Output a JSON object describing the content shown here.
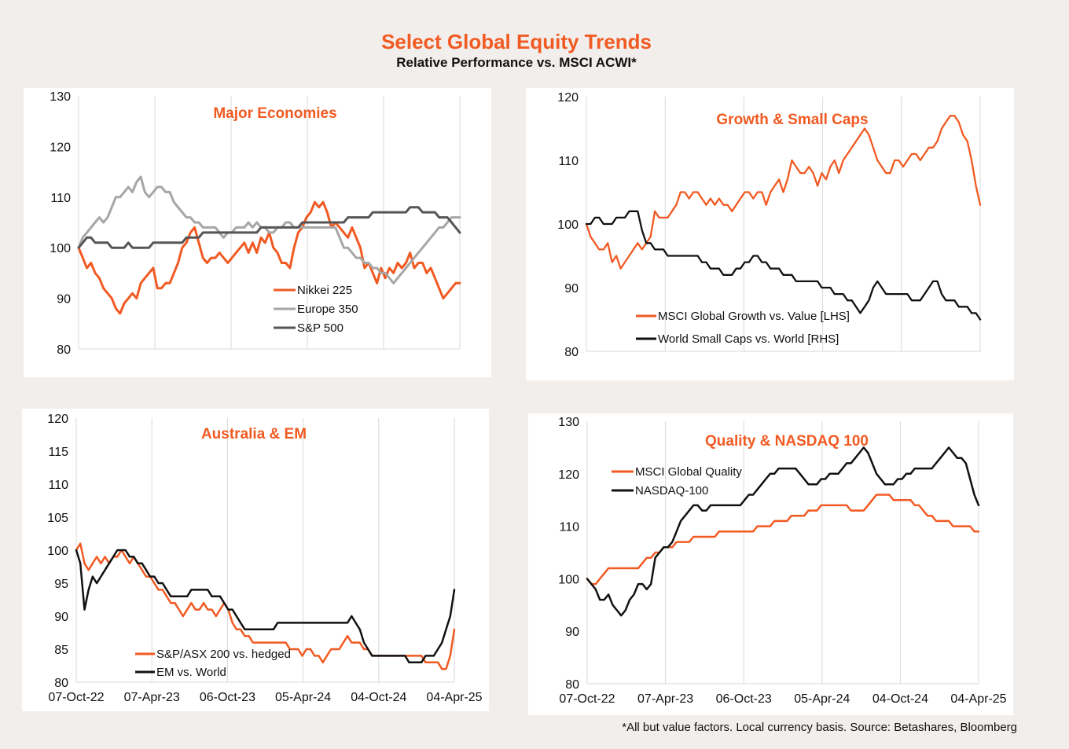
{
  "header": {
    "title": "Select Global Equity Trends",
    "subtitle": "Relative Performance vs. MSCI ACWI*"
  },
  "footnote": "*All but value factors. Local currency basis.  Source: Betashares, Bloomberg",
  "colors": {
    "orange": "#f15a22",
    "grey": "#a6a6a6",
    "darkgrey": "#555555",
    "black": "#111111"
  },
  "x_ticks": [
    "07-Oct-22",
    "07-Apr-23",
    "06-Oct-23",
    "05-Apr-24",
    "04-Oct-24",
    "04-Apr-25"
  ],
  "chart_data": [
    {
      "id": "major",
      "type": "line",
      "title": "Major  Economies",
      "ylim": [
        80,
        130
      ],
      "yticks": [
        80,
        90,
        100,
        110,
        120,
        130
      ],
      "x_range": [
        "07-Oct-22",
        "04-Apr-25"
      ],
      "show_x_ticks": false,
      "series": [
        {
          "name": "Nikkei 225",
          "color": "#f15a22",
          "values": [
            100,
            98,
            96,
            97,
            95,
            94,
            92,
            91,
            90,
            88,
            87,
            89,
            90,
            91,
            90,
            93,
            94,
            95,
            96,
            92,
            92,
            93,
            93,
            95,
            97,
            100,
            101,
            103,
            104,
            101,
            98,
            97,
            98,
            98,
            99,
            98,
            97,
            98,
            99,
            100,
            101,
            99,
            101,
            99,
            102,
            101,
            103,
            100,
            99,
            97,
            97,
            96,
            100,
            103,
            104,
            106,
            107,
            109,
            108,
            109,
            107,
            104,
            105,
            104,
            103,
            102,
            104,
            102,
            100,
            96,
            97,
            95,
            93,
            96,
            94,
            96,
            95,
            97,
            96,
            97,
            99,
            96,
            97,
            97,
            95,
            96,
            94,
            92,
            90,
            91,
            92,
            93,
            93
          ]
        },
        {
          "name": "Europe 350",
          "color": "#a6a6a6",
          "values": [
            100,
            102,
            103,
            104,
            105,
            106,
            105,
            106,
            108,
            110,
            110,
            111,
            112,
            111,
            113,
            114,
            111,
            110,
            111,
            112,
            112,
            111,
            111,
            109,
            108,
            107,
            106,
            106,
            105,
            105,
            104,
            104,
            104,
            104,
            103,
            102,
            103,
            103,
            104,
            104,
            104,
            105,
            104,
            105,
            104,
            104,
            103,
            103,
            104,
            104,
            105,
            105,
            104,
            104,
            104,
            104,
            104,
            104,
            104,
            104,
            104,
            104,
            104,
            102,
            100,
            100,
            99,
            98,
            98,
            97,
            97,
            96,
            96,
            95,
            95,
            94,
            93,
            94,
            95,
            96,
            97,
            98,
            99,
            100,
            101,
            102,
            103,
            104,
            104,
            105,
            106,
            106,
            106
          ]
        },
        {
          "name": "S&P 500",
          "color": "#555555",
          "values": [
            100,
            101,
            102,
            102,
            101,
            101,
            101,
            101,
            100,
            100,
            100,
            100,
            101,
            100,
            100,
            100,
            100,
            100,
            101,
            101,
            101,
            101,
            101,
            101,
            101,
            101,
            102,
            102,
            102,
            102,
            103,
            103,
            103,
            103,
            103,
            103,
            103,
            103,
            103,
            103,
            103,
            103,
            103,
            103,
            104,
            104,
            104,
            104,
            104,
            104,
            104,
            104,
            104,
            104,
            105,
            105,
            105,
            105,
            105,
            105,
            105,
            105,
            105,
            105,
            105,
            106,
            106,
            106,
            106,
            106,
            106,
            107,
            107,
            107,
            107,
            107,
            107,
            107,
            107,
            107,
            108,
            108,
            108,
            107,
            107,
            107,
            107,
            106,
            106,
            106,
            105,
            104,
            103
          ]
        }
      ]
    },
    {
      "id": "growth",
      "type": "line",
      "title": "Growth & Small Caps",
      "ylim": [
        80,
        120
      ],
      "yticks": [
        80,
        90,
        100,
        110,
        120
      ],
      "x_range": [
        "07-Oct-22",
        "04-Apr-25"
      ],
      "show_x_ticks": false,
      "series": [
        {
          "name": "MSCI Global Growth vs. Value [LHS]",
          "color": "#f15a22",
          "values": [
            100,
            98,
            97,
            96,
            96,
            97,
            94,
            95,
            93,
            94,
            95,
            96,
            97,
            96,
            97,
            98,
            102,
            101,
            101,
            101,
            102,
            103,
            105,
            105,
            104,
            105,
            105,
            104,
            103,
            104,
            103,
            104,
            103,
            103,
            102,
            103,
            104,
            105,
            105,
            104,
            105,
            105,
            103,
            105,
            106,
            107,
            105,
            107,
            110,
            109,
            108,
            108,
            109,
            108,
            106,
            108,
            107,
            109,
            110,
            108,
            110,
            111,
            112,
            113,
            114,
            115,
            114,
            112,
            110,
            109,
            108,
            108,
            110,
            110,
            109,
            110,
            111,
            111,
            110,
            111,
            112,
            112,
            113,
            115,
            116,
            117,
            117,
            116,
            114,
            113,
            110,
            106,
            103
          ]
        },
        {
          "name": "World Small Caps vs. World [RHS]",
          "color": "#111111",
          "values": [
            100,
            100,
            101,
            101,
            100,
            100,
            100,
            101,
            101,
            101,
            102,
            102,
            102,
            99,
            97,
            97,
            96,
            96,
            96,
            95,
            95,
            95,
            95,
            95,
            95,
            95,
            95,
            94,
            94,
            93,
            93,
            93,
            92,
            92,
            92,
            93,
            93,
            94,
            94,
            95,
            95,
            94,
            94,
            93,
            93,
            93,
            92,
            92,
            92,
            91,
            91,
            91,
            91,
            91,
            91,
            90,
            90,
            90,
            89,
            89,
            89,
            88,
            88,
            87,
            86,
            87,
            88,
            90,
            91,
            90,
            89,
            89,
            89,
            89,
            89,
            89,
            88,
            88,
            88,
            89,
            90,
            91,
            91,
            89,
            88,
            88,
            88,
            87,
            87,
            87,
            86,
            86,
            85
          ]
        }
      ]
    },
    {
      "id": "aus",
      "type": "line",
      "title": "Australia & EM",
      "ylim": [
        80,
        120
      ],
      "yticks": [
        80,
        85,
        90,
        95,
        100,
        105,
        110,
        115,
        120
      ],
      "x_range": [
        "07-Oct-22",
        "04-Apr-25"
      ],
      "show_x_ticks": true,
      "series": [
        {
          "name": "S&P/ASX 200 vs. hedged",
          "color": "#f15a22",
          "values": [
            100,
            101,
            98,
            97,
            98,
            99,
            98,
            99,
            98,
            99,
            99,
            100,
            99,
            98,
            99,
            98,
            97,
            96,
            96,
            95,
            94,
            94,
            93,
            92,
            92,
            91,
            90,
            91,
            92,
            91,
            91,
            92,
            91,
            91,
            90,
            91,
            92,
            91,
            89,
            88,
            88,
            87,
            87,
            86,
            86,
            86,
            86,
            86,
            86,
            86,
            86,
            86,
            85,
            85,
            85,
            84,
            85,
            85,
            84,
            84,
            83,
            84,
            85,
            85,
            85,
            86,
            87,
            86,
            86,
            86,
            85,
            85,
            84,
            84,
            84,
            84,
            84,
            84,
            84,
            84,
            84,
            84,
            84,
            84,
            84,
            83,
            83,
            83,
            83,
            82,
            82,
            84,
            88
          ]
        },
        {
          "name": "EM vs. World",
          "color": "#111111",
          "values": [
            100,
            98,
            91,
            94,
            96,
            95,
            96,
            97,
            98,
            99,
            100,
            100,
            100,
            99,
            99,
            98,
            98,
            97,
            96,
            96,
            95,
            95,
            94,
            93,
            93,
            93,
            93,
            93,
            94,
            94,
            94,
            94,
            94,
            93,
            93,
            93,
            92,
            91,
            91,
            90,
            89,
            88,
            88,
            88,
            88,
            88,
            88,
            88,
            88,
            89,
            89,
            89,
            89,
            89,
            89,
            89,
            89,
            89,
            89,
            89,
            89,
            89,
            89,
            89,
            89,
            89,
            89,
            90,
            89,
            88,
            86,
            85,
            84,
            84,
            84,
            84,
            84,
            84,
            84,
            84,
            84,
            83,
            83,
            83,
            83,
            84,
            84,
            84,
            85,
            86,
            88,
            90,
            94
          ]
        }
      ]
    },
    {
      "id": "quality",
      "type": "line",
      "title": "Quality & NASDAQ 100",
      "ylim": [
        80,
        130
      ],
      "yticks": [
        80,
        90,
        100,
        110,
        120,
        130
      ],
      "x_range": [
        "07-Oct-22",
        "04-Apr-25"
      ],
      "show_x_ticks": true,
      "series": [
        {
          "name": "MSCI Global Quality",
          "color": "#f15a22",
          "values": [
            100,
            99,
            99,
            100,
            101,
            102,
            102,
            102,
            102,
            102,
            102,
            102,
            102,
            103,
            104,
            104,
            105,
            105,
            106,
            106,
            106,
            107,
            107,
            107,
            107,
            108,
            108,
            108,
            108,
            108,
            108,
            109,
            109,
            109,
            109,
            109,
            109,
            109,
            109,
            109,
            110,
            110,
            110,
            110,
            111,
            111,
            111,
            111,
            112,
            112,
            112,
            112,
            113,
            113,
            113,
            114,
            114,
            114,
            114,
            114,
            114,
            114,
            113,
            113,
            113,
            113,
            114,
            115,
            116,
            116,
            116,
            116,
            115,
            115,
            115,
            115,
            115,
            114,
            114,
            113,
            112,
            112,
            111,
            111,
            111,
            111,
            110,
            110,
            110,
            110,
            110,
            109,
            109
          ]
        },
        {
          "name": "NASDAQ-100",
          "color": "#111111",
          "values": [
            100,
            99,
            98,
            96,
            96,
            97,
            95,
            94,
            93,
            94,
            96,
            97,
            99,
            99,
            98,
            99,
            104,
            105,
            106,
            106,
            107,
            109,
            111,
            112,
            113,
            114,
            114,
            113,
            113,
            114,
            114,
            114,
            114,
            114,
            114,
            114,
            114,
            115,
            116,
            116,
            117,
            118,
            119,
            120,
            120,
            121,
            121,
            121,
            121,
            121,
            120,
            119,
            118,
            118,
            118,
            119,
            119,
            120,
            120,
            120,
            121,
            122,
            122,
            123,
            124,
            125,
            124,
            122,
            120,
            119,
            118,
            118,
            118,
            119,
            119,
            120,
            120,
            121,
            121,
            121,
            121,
            121,
            122,
            123,
            124,
            125,
            124,
            123,
            123,
            122,
            119,
            116,
            114
          ]
        }
      ]
    }
  ]
}
